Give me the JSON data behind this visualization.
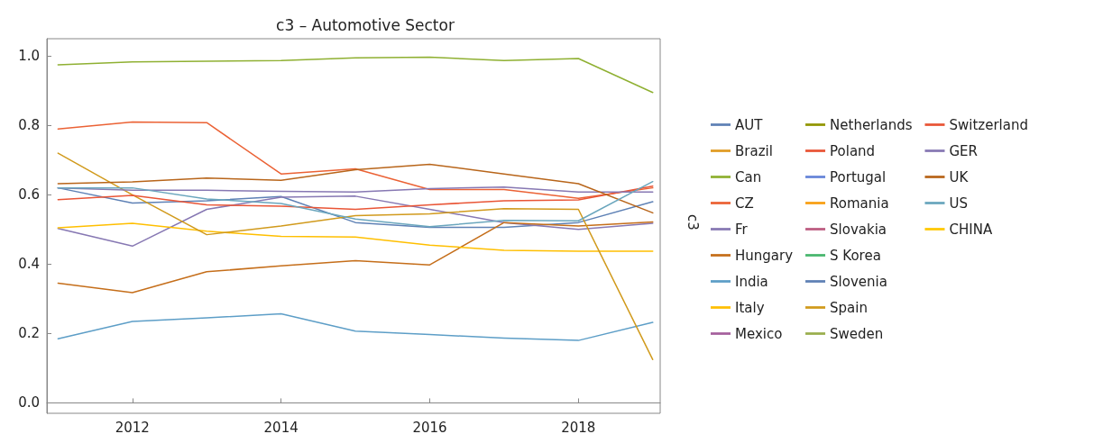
{
  "chart_data": {
    "type": "line",
    "title": "c3 – Automotive Sector",
    "ylabel": "c3",
    "x": [
      2011,
      2012,
      2013,
      2014,
      2015,
      2016,
      2017,
      2018,
      2019
    ],
    "xlim": [
      2010.85,
      2019.1
    ],
    "xticks": [
      2012,
      2014,
      2016,
      2018
    ],
    "ylim": [
      -0.03,
      1.05
    ],
    "yticks": [
      {
        "value": 0,
        "label": "0.0"
      },
      {
        "value": 0.2,
        "label": "0.2"
      },
      {
        "value": 0.4,
        "label": "0.4"
      },
      {
        "value": 0.6,
        "label": "0.6"
      },
      {
        "value": 0.8,
        "label": "0.8"
      },
      {
        "value": 1,
        "label": "1.0"
      }
    ],
    "legend": "right",
    "marker": "none",
    "line_style": "solid",
    "series": [
      {
        "name": "AUT",
        "color": "#5e81b5",
        "values": [
          0.62,
          0.576,
          0.583,
          0.595,
          0.52,
          0.506,
          0.506,
          0.52,
          0.58
        ]
      },
      {
        "name": "Brazil",
        "color": "#e19c24",
        "values": [
          null,
          null,
          null,
          null,
          null,
          null,
          null,
          null,
          null
        ]
      },
      {
        "name": "Can",
        "color": "#8fb032",
        "values": [
          0.975,
          0.983,
          0.985,
          0.987,
          0.995,
          0.997,
          0.987,
          0.993,
          0.895
        ]
      },
      {
        "name": "CZ",
        "color": "#eb6235",
        "values": [
          0.79,
          0.81,
          0.808,
          0.66,
          0.675,
          0.615,
          0.615,
          0.59,
          0.62
        ]
      },
      {
        "name": "Fr",
        "color": "#8778b3",
        "values": [
          0.503,
          0.452,
          0.558,
          0.593,
          0.596,
          0.558,
          0.52,
          0.5,
          0.518
        ]
      },
      {
        "name": "Hungary",
        "color": "#c56e1a",
        "values": [
          0.345,
          0.318,
          0.378,
          0.395,
          0.41,
          0.398,
          0.52,
          0.51,
          0.522
        ]
      },
      {
        "name": "India",
        "color": "#5d9ec7",
        "values": [
          0.185,
          0.235,
          0.245,
          0.257,
          0.207,
          0.197,
          0.187,
          0.18,
          0.232
        ]
      },
      {
        "name": "Italy",
        "color": "#ffbf00",
        "values": [
          0.505,
          0.518,
          0.495,
          0.48,
          0.478,
          0.455,
          0.44,
          0.437,
          0.437
        ]
      },
      {
        "name": "Mexico",
        "color": "#a5609d",
        "values": [
          null,
          null,
          null,
          null,
          null,
          null,
          null,
          null,
          null
        ]
      },
      {
        "name": "Netherlands",
        "color": "#929600",
        "values": [
          null,
          null,
          null,
          null,
          null,
          null,
          null,
          null,
          null
        ]
      },
      {
        "name": "Poland",
        "color": "#e95536",
        "values": [
          null,
          null,
          null,
          null,
          null,
          null,
          null,
          null,
          null
        ]
      },
      {
        "name": "Portugal",
        "color": "#6685d9",
        "values": [
          null,
          null,
          null,
          null,
          null,
          null,
          null,
          null,
          null
        ]
      },
      {
        "name": "Romania",
        "color": "#f89f13",
        "values": [
          null,
          null,
          null,
          null,
          null,
          null,
          null,
          null,
          null
        ]
      },
      {
        "name": "Slovakia",
        "color": "#bc5b80",
        "values": [
          null,
          null,
          null,
          null,
          null,
          null,
          null,
          null,
          null
        ]
      },
      {
        "name": "S Korea",
        "color": "#47b66d",
        "values": [
          null,
          null,
          null,
          null,
          null,
          null,
          null,
          null,
          null
        ]
      },
      {
        "name": "Slovenia",
        "color": "#5e81b5",
        "values": [
          null,
          null,
          null,
          null,
          null,
          null,
          null,
          null,
          null
        ]
      },
      {
        "name": "Spain",
        "color": "#d19a1c",
        "values": [
          0.72,
          0.6,
          0.485,
          0.51,
          0.54,
          0.545,
          0.56,
          0.558,
          0.125
        ]
      },
      {
        "name": "Sweden",
        "color": "#9aae4d",
        "values": [
          null,
          null,
          null,
          null,
          null,
          null,
          null,
          null,
          null
        ]
      },
      {
        "name": "Switzerland",
        "color": "#e95536",
        "values": [
          0.586,
          0.598,
          0.571,
          0.567,
          0.558,
          0.571,
          0.583,
          0.585,
          0.625
        ]
      },
      {
        "name": "GER",
        "color": "#8778b3",
        "values": [
          0.62,
          0.613,
          0.613,
          0.61,
          0.608,
          0.618,
          0.622,
          0.608,
          0.608
        ]
      },
      {
        "name": "UK",
        "color": "#b8651a",
        "values": [
          0.632,
          0.637,
          0.648,
          0.642,
          0.672,
          0.688,
          0.66,
          0.632,
          0.548
        ]
      },
      {
        "name": "US",
        "color": "#6aa6bd",
        "values": [
          0.62,
          0.62,
          0.588,
          0.575,
          0.53,
          0.508,
          0.526,
          0.525,
          0.638
        ]
      },
      {
        "name": "CHINA",
        "color": "#ffc800",
        "values": [
          null,
          null,
          null,
          null,
          null,
          null,
          null,
          null,
          null
        ]
      }
    ]
  }
}
